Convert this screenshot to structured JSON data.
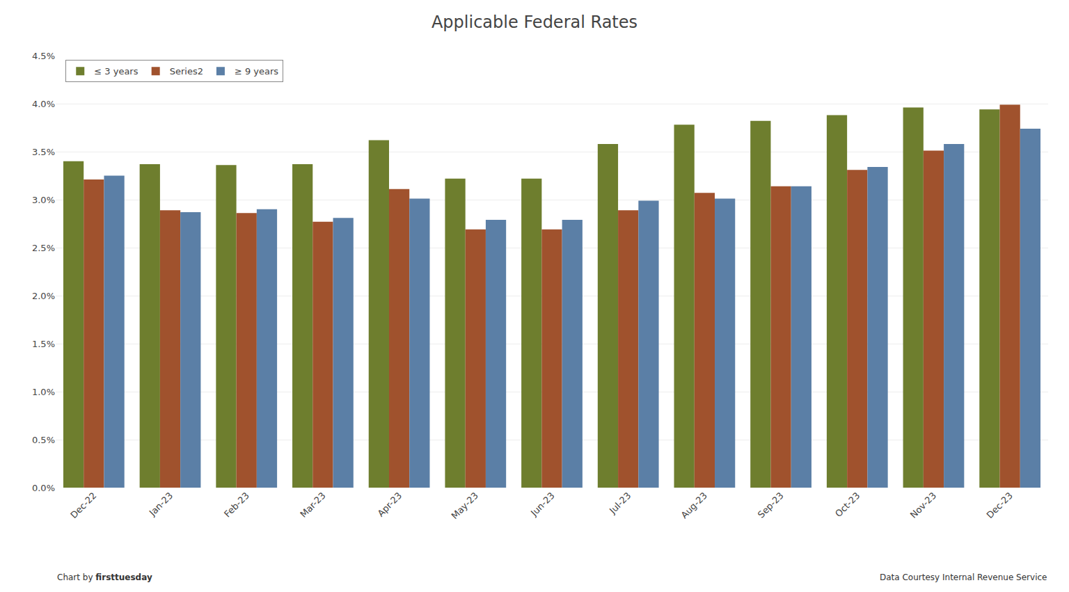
{
  "chart_data": {
    "type": "bar",
    "title": "Applicable Federal Rates",
    "categories": [
      "Dec-22",
      "Jan-23",
      "Feb-23",
      "Mar-23",
      "Apr-23",
      "May-23",
      "Jun-23",
      "Jul-23",
      "Aug-23",
      "Sep-23",
      "Oct-23",
      "Nov-23",
      "Dec-23"
    ],
    "series": [
      {
        "name": "≤ 3 years",
        "color": "#6e7e2e",
        "values": [
          0.034,
          0.0337,
          0.0336,
          0.0337,
          0.0362,
          0.0322,
          0.0322,
          0.0358,
          0.0378,
          0.0382,
          0.0388,
          0.0396,
          0.0394
        ]
      },
      {
        "name": "Series2",
        "color": "#a0522d",
        "values": [
          0.0321,
          0.0289,
          0.0286,
          0.0277,
          0.0311,
          0.0269,
          0.0269,
          0.0289,
          0.0307,
          0.0314,
          0.0331,
          0.0351,
          0.0399
        ]
      },
      {
        "name": "≥ 9 years",
        "color": "#5b7fa6",
        "values": [
          0.0325,
          0.0287,
          0.029,
          0.0281,
          0.0301,
          0.0279,
          0.0279,
          0.0299,
          0.0301,
          0.0314,
          0.0334,
          0.0358,
          0.0374
        ]
      }
    ],
    "ylim": [
      0.0,
      0.045
    ],
    "yticks": [
      {
        "value": 0.0,
        "label": "0.0%"
      },
      {
        "value": 0.005,
        "label": "0.5%"
      },
      {
        "value": 0.01,
        "label": "1.0%"
      },
      {
        "value": 0.015,
        "label": "1.5%"
      },
      {
        "value": 0.02,
        "label": "2.0%"
      },
      {
        "value": 0.025,
        "label": "2.5%"
      },
      {
        "value": 0.03,
        "label": "3.0%"
      },
      {
        "value": 0.035,
        "label": "3.5%"
      },
      {
        "value": 0.04,
        "label": "4.0%"
      },
      {
        "value": 0.045,
        "label": "4.5%"
      }
    ],
    "grid": true,
    "legend": "upper left",
    "annotations": [
      "Chart by ",
      "firsttuesday",
      "Data Courtesy Internal Revenue Service"
    ]
  }
}
